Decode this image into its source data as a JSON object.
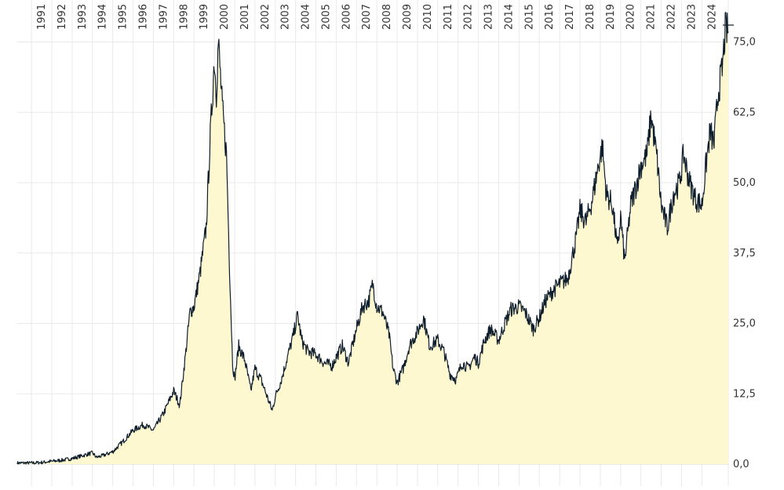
{
  "chart_data": {
    "type": "area",
    "title": "",
    "xlabel": "",
    "ylabel": "",
    "x_tick_labels": [
      "1991",
      "1992",
      "1993",
      "1994",
      "1995",
      "1996",
      "1997",
      "1998",
      "1999",
      "2000",
      "2001",
      "2002",
      "2003",
      "2004",
      "2005",
      "2006",
      "2007",
      "2008",
      "2009",
      "2010",
      "2011",
      "2012",
      "2013",
      "2014",
      "2015",
      "2016",
      "2017",
      "2018",
      "2019",
      "2020",
      "2021",
      "2022",
      "2023",
      "2024"
    ],
    "y_tick_labels": [
      "0,0",
      "12,5",
      "25,0",
      "37,5",
      "50,0",
      "62,5",
      "75,0"
    ],
    "ylim": [
      0,
      78
    ],
    "xlim": [
      1990.3,
      2025.3
    ],
    "grid": true,
    "series": [
      {
        "color": "#0f1e2d",
        "fill": "#fdf8cf",
        "points": [
          [
            1990.3,
            0.2
          ],
          [
            1991.0,
            0.2
          ],
          [
            1991.5,
            0.3
          ],
          [
            1992.0,
            0.5
          ],
          [
            1992.5,
            0.7
          ],
          [
            1993.0,
            1.0
          ],
          [
            1993.5,
            1.5
          ],
          [
            1994.0,
            2.0
          ],
          [
            1994.2,
            1.2
          ],
          [
            1994.5,
            1.5
          ],
          [
            1995.0,
            2.2
          ],
          [
            1995.5,
            4.0
          ],
          [
            1996.0,
            6.0
          ],
          [
            1996.5,
            7.0
          ],
          [
            1997.0,
            6.0
          ],
          [
            1997.5,
            9.0
          ],
          [
            1998.0,
            13.0
          ],
          [
            1998.3,
            10.5
          ],
          [
            1998.6,
            20.0
          ],
          [
            1998.8,
            27.0
          ],
          [
            1999.0,
            28.0
          ],
          [
            1999.3,
            34.0
          ],
          [
            1999.6,
            42.0
          ],
          [
            1999.8,
            58.0
          ],
          [
            2000.0,
            72.0
          ],
          [
            2000.1,
            66.0
          ],
          [
            2000.2,
            75.0
          ],
          [
            2000.4,
            63.0
          ],
          [
            2000.6,
            55.0
          ],
          [
            2000.75,
            35.0
          ],
          [
            2000.9,
            18.0
          ],
          [
            2001.0,
            15.0
          ],
          [
            2001.2,
            21.0
          ],
          [
            2001.5,
            18.5
          ],
          [
            2001.8,
            13.0
          ],
          [
            2002.0,
            17.0
          ],
          [
            2002.3,
            15.0
          ],
          [
            2002.6,
            12.0
          ],
          [
            2002.85,
            9.5
          ],
          [
            2003.0,
            12.0
          ],
          [
            2003.3,
            15.0
          ],
          [
            2003.6,
            19.0
          ],
          [
            2003.9,
            23.0
          ],
          [
            2004.1,
            26.5
          ],
          [
            2004.3,
            22.0
          ],
          [
            2004.6,
            20.0
          ],
          [
            2005.0,
            19.5
          ],
          [
            2005.4,
            18.0
          ],
          [
            2005.8,
            17.5
          ],
          [
            2006.0,
            19.0
          ],
          [
            2006.3,
            21.0
          ],
          [
            2006.6,
            18.0
          ],
          [
            2007.0,
            24.0
          ],
          [
            2007.3,
            28.0
          ],
          [
            2007.6,
            29.0
          ],
          [
            2007.8,
            32.0
          ],
          [
            2008.0,
            28.0
          ],
          [
            2008.3,
            27.0
          ],
          [
            2008.6,
            23.0
          ],
          [
            2008.8,
            17.0
          ],
          [
            2009.0,
            14.5
          ],
          [
            2009.3,
            17.0
          ],
          [
            2009.6,
            21.0
          ],
          [
            2010.0,
            23.5
          ],
          [
            2010.3,
            26.0
          ],
          [
            2010.6,
            21.0
          ],
          [
            2011.0,
            22.0
          ],
          [
            2011.3,
            20.0
          ],
          [
            2011.6,
            16.0
          ],
          [
            2011.9,
            15.0
          ],
          [
            2012.2,
            18.0
          ],
          [
            2012.5,
            17.0
          ],
          [
            2012.8,
            19.0
          ],
          [
            2013.0,
            18.0
          ],
          [
            2013.3,
            22.0
          ],
          [
            2013.6,
            24.0
          ],
          [
            2014.0,
            22.0
          ],
          [
            2014.3,
            25.0
          ],
          [
            2014.6,
            27.5
          ],
          [
            2015.0,
            28.0
          ],
          [
            2015.3,
            27.0
          ],
          [
            2015.7,
            24.0
          ],
          [
            2016.0,
            26.0
          ],
          [
            2016.3,
            29.0
          ],
          [
            2016.7,
            31.0
          ],
          [
            2017.0,
            32.0
          ],
          [
            2017.4,
            33.0
          ],
          [
            2017.8,
            40.0
          ],
          [
            2018.0,
            45.0
          ],
          [
            2018.3,
            43.0
          ],
          [
            2018.6,
            47.0
          ],
          [
            2018.9,
            53.0
          ],
          [
            2019.1,
            56.5
          ],
          [
            2019.3,
            48.0
          ],
          [
            2019.6,
            46.0
          ],
          [
            2019.85,
            38.0
          ],
          [
            2020.0,
            44.0
          ],
          [
            2020.2,
            36.0
          ],
          [
            2020.5,
            46.0
          ],
          [
            2020.8,
            50.0
          ],
          [
            2021.0,
            53.0
          ],
          [
            2021.3,
            55.0
          ],
          [
            2021.5,
            62.0
          ],
          [
            2021.8,
            54.0
          ],
          [
            2022.0,
            46.0
          ],
          [
            2022.3,
            42.0
          ],
          [
            2022.6,
            48.0
          ],
          [
            2022.9,
            50.0
          ],
          [
            2023.1,
            55.0
          ],
          [
            2023.4,
            50.0
          ],
          [
            2023.7,
            47.0
          ],
          [
            2024.0,
            46.0
          ],
          [
            2024.2,
            53.0
          ],
          [
            2024.4,
            59.0
          ],
          [
            2024.6,
            57.0
          ],
          [
            2024.8,
            66.0
          ],
          [
            2025.0,
            70.0
          ],
          [
            2025.15,
            77.0
          ],
          [
            2025.3,
            77.0
          ]
        ]
      }
    ]
  }
}
